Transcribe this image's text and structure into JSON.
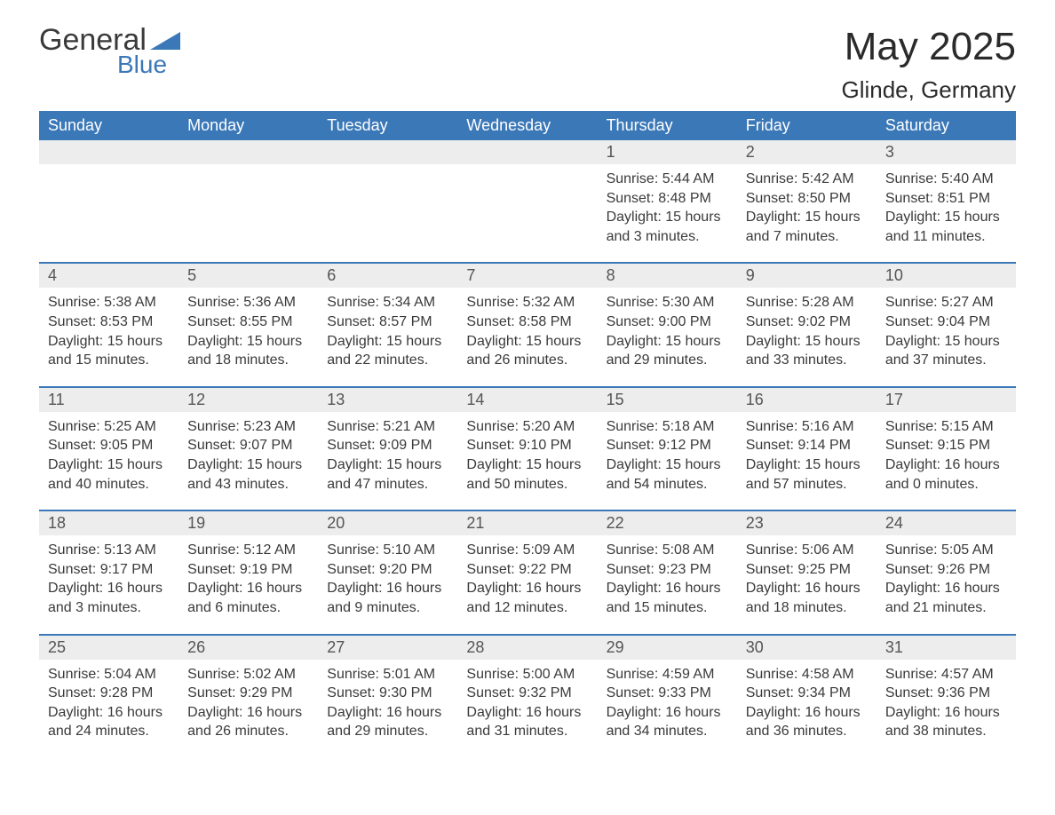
{
  "logo": {
    "text1": "General",
    "text2": "Blue"
  },
  "title": "May 2025",
  "subtitle": "Glinde, Germany",
  "colors": {
    "header_bg": "#3b78b8",
    "header_text": "#ffffff",
    "row_separator": "#3b78b8",
    "daynum_bg": "#ededed",
    "text": "#3a3a3a",
    "logo_accent": "#3b78b8"
  },
  "dayHeaders": [
    "Sunday",
    "Monday",
    "Tuesday",
    "Wednesday",
    "Thursday",
    "Friday",
    "Saturday"
  ],
  "weeks": [
    [
      null,
      null,
      null,
      null,
      {
        "n": "1",
        "sunrise": "5:44 AM",
        "sunset": "8:48 PM",
        "daylight": "15 hours and 3 minutes."
      },
      {
        "n": "2",
        "sunrise": "5:42 AM",
        "sunset": "8:50 PM",
        "daylight": "15 hours and 7 minutes."
      },
      {
        "n": "3",
        "sunrise": "5:40 AM",
        "sunset": "8:51 PM",
        "daylight": "15 hours and 11 minutes."
      }
    ],
    [
      {
        "n": "4",
        "sunrise": "5:38 AM",
        "sunset": "8:53 PM",
        "daylight": "15 hours and 15 minutes."
      },
      {
        "n": "5",
        "sunrise": "5:36 AM",
        "sunset": "8:55 PM",
        "daylight": "15 hours and 18 minutes."
      },
      {
        "n": "6",
        "sunrise": "5:34 AM",
        "sunset": "8:57 PM",
        "daylight": "15 hours and 22 minutes."
      },
      {
        "n": "7",
        "sunrise": "5:32 AM",
        "sunset": "8:58 PM",
        "daylight": "15 hours and 26 minutes."
      },
      {
        "n": "8",
        "sunrise": "5:30 AM",
        "sunset": "9:00 PM",
        "daylight": "15 hours and 29 minutes."
      },
      {
        "n": "9",
        "sunrise": "5:28 AM",
        "sunset": "9:02 PM",
        "daylight": "15 hours and 33 minutes."
      },
      {
        "n": "10",
        "sunrise": "5:27 AM",
        "sunset": "9:04 PM",
        "daylight": "15 hours and 37 minutes."
      }
    ],
    [
      {
        "n": "11",
        "sunrise": "5:25 AM",
        "sunset": "9:05 PM",
        "daylight": "15 hours and 40 minutes."
      },
      {
        "n": "12",
        "sunrise": "5:23 AM",
        "sunset": "9:07 PM",
        "daylight": "15 hours and 43 minutes."
      },
      {
        "n": "13",
        "sunrise": "5:21 AM",
        "sunset": "9:09 PM",
        "daylight": "15 hours and 47 minutes."
      },
      {
        "n": "14",
        "sunrise": "5:20 AM",
        "sunset": "9:10 PM",
        "daylight": "15 hours and 50 minutes."
      },
      {
        "n": "15",
        "sunrise": "5:18 AM",
        "sunset": "9:12 PM",
        "daylight": "15 hours and 54 minutes."
      },
      {
        "n": "16",
        "sunrise": "5:16 AM",
        "sunset": "9:14 PM",
        "daylight": "15 hours and 57 minutes."
      },
      {
        "n": "17",
        "sunrise": "5:15 AM",
        "sunset": "9:15 PM",
        "daylight": "16 hours and 0 minutes."
      }
    ],
    [
      {
        "n": "18",
        "sunrise": "5:13 AM",
        "sunset": "9:17 PM",
        "daylight": "16 hours and 3 minutes."
      },
      {
        "n": "19",
        "sunrise": "5:12 AM",
        "sunset": "9:19 PM",
        "daylight": "16 hours and 6 minutes."
      },
      {
        "n": "20",
        "sunrise": "5:10 AM",
        "sunset": "9:20 PM",
        "daylight": "16 hours and 9 minutes."
      },
      {
        "n": "21",
        "sunrise": "5:09 AM",
        "sunset": "9:22 PM",
        "daylight": "16 hours and 12 minutes."
      },
      {
        "n": "22",
        "sunrise": "5:08 AM",
        "sunset": "9:23 PM",
        "daylight": "16 hours and 15 minutes."
      },
      {
        "n": "23",
        "sunrise": "5:06 AM",
        "sunset": "9:25 PM",
        "daylight": "16 hours and 18 minutes."
      },
      {
        "n": "24",
        "sunrise": "5:05 AM",
        "sunset": "9:26 PM",
        "daylight": "16 hours and 21 minutes."
      }
    ],
    [
      {
        "n": "25",
        "sunrise": "5:04 AM",
        "sunset": "9:28 PM",
        "daylight": "16 hours and 24 minutes."
      },
      {
        "n": "26",
        "sunrise": "5:02 AM",
        "sunset": "9:29 PM",
        "daylight": "16 hours and 26 minutes."
      },
      {
        "n": "27",
        "sunrise": "5:01 AM",
        "sunset": "9:30 PM",
        "daylight": "16 hours and 29 minutes."
      },
      {
        "n": "28",
        "sunrise": "5:00 AM",
        "sunset": "9:32 PM",
        "daylight": "16 hours and 31 minutes."
      },
      {
        "n": "29",
        "sunrise": "4:59 AM",
        "sunset": "9:33 PM",
        "daylight": "16 hours and 34 minutes."
      },
      {
        "n": "30",
        "sunrise": "4:58 AM",
        "sunset": "9:34 PM",
        "daylight": "16 hours and 36 minutes."
      },
      {
        "n": "31",
        "sunrise": "4:57 AM",
        "sunset": "9:36 PM",
        "daylight": "16 hours and 38 minutes."
      }
    ]
  ],
  "labels": {
    "sunrise": "Sunrise:",
    "sunset": "Sunset:",
    "daylight": "Daylight:"
  }
}
